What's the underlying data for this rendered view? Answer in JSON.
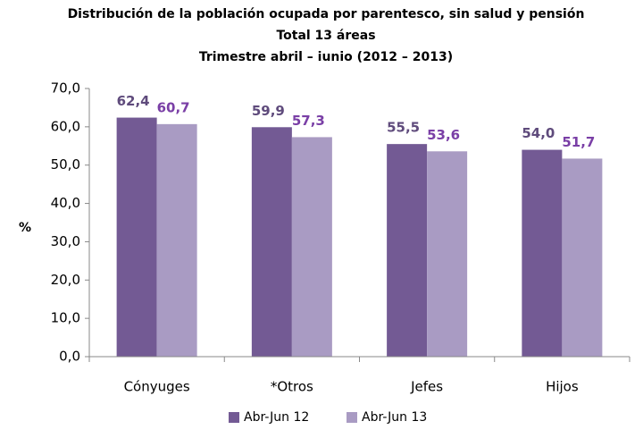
{
  "chart_data": {
    "type": "bar",
    "title": "Distribución de la población ocupada por parentesco, sin salud y pensión",
    "subtitle": [
      "Total 13 áreas",
      "Trimestre abril – iunio (2012 – 2013)"
    ],
    "y_label": "%",
    "categories": [
      "Cónyuges",
      "*Otros",
      "Jefes",
      "Hijos"
    ],
    "series": [
      {
        "name": "Abr-Jun 12",
        "color": "#735a94",
        "label_color": "#5f4b7c",
        "values": [
          62.4,
          59.9,
          55.5,
          54.0
        ],
        "value_labels": [
          "62,4",
          "59,9",
          "55,5",
          "54,0"
        ]
      },
      {
        "name": "Abr-Jun 13",
        "color": "#a99bc3",
        "label_color": "#7a3fa6",
        "values": [
          60.7,
          57.3,
          53.6,
          51.7
        ],
        "value_labels": [
          "60,7",
          "57,3",
          "53,6",
          "51,7"
        ]
      }
    ],
    "ylim": [
      0,
      70
    ],
    "yticks": [
      {
        "value": 0,
        "label": "0,0"
      },
      {
        "value": 10,
        "label": "10,0"
      },
      {
        "value": 20,
        "label": "20,0"
      },
      {
        "value": 30,
        "label": "30,0"
      },
      {
        "value": 40,
        "label": "40,0"
      },
      {
        "value": 50,
        "label": "50,0"
      },
      {
        "value": 60,
        "label": "60,0"
      },
      {
        "value": 70,
        "label": "70,0"
      }
    ],
    "legend": "bottom"
  }
}
